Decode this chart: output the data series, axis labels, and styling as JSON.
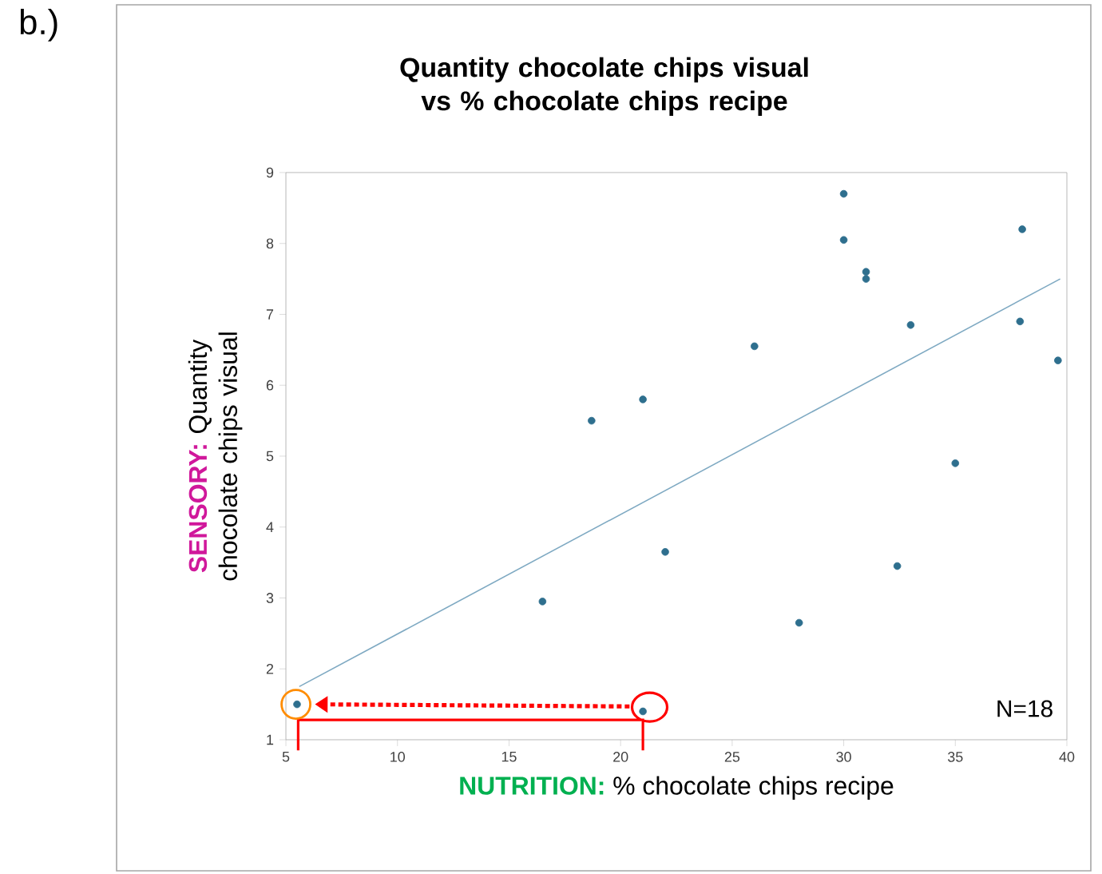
{
  "chart_data": {
    "type": "scatter",
    "title": "Quantity chocolate chips visual vs % chocolate chips recipe",
    "xlabel": "**NUTRITION:** % chocolate chips recipe",
    "ylabel": "**SENSORY:** Quantity chocolate chips visual",
    "x": [
      5.5,
      21,
      16.5,
      18.7,
      21,
      22,
      26,
      28,
      30,
      30,
      31,
      31,
      32.4,
      33,
      35,
      38,
      37.9,
      39.6
    ],
    "series": [
      {
        "type": "scatter",
        "color": "#2e6f8e",
        "values": [
          1.5,
          1.4,
          2.95,
          5.5,
          5.8,
          3.65,
          6.55,
          2.65,
          8.7,
          8.05,
          7.6,
          7.5,
          3.45,
          6.85,
          4.9,
          8.2,
          6.9,
          6.35
        ]
      },
      {
        "type": "line",
        "marker": "none",
        "color": "#7ea9c2",
        "x": [
          5.6,
          39.7
        ],
        "values": [
          1.75,
          7.5
        ]
      }
    ],
    "xlim": [
      5,
      40
    ],
    "ylim": [
      1,
      9
    ],
    "xticks": [
      5,
      10,
      15,
      20,
      25,
      30,
      35,
      40
    ],
    "yticks": [
      1,
      2,
      3,
      4,
      5,
      6,
      7,
      8,
      9
    ],
    "marker": "circle",
    "grid": false,
    "annotations": [
      "b.)",
      "N=18"
    ]
  }
}
